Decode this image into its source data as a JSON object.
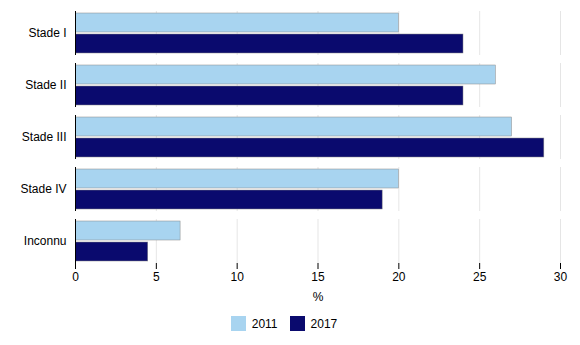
{
  "chart_data": {
    "type": "bar",
    "orientation": "horizontal",
    "categories": [
      "Stade I",
      "Stade II",
      "Stade III",
      "Stade IV",
      "Inconnu"
    ],
    "series": [
      {
        "name": "2011",
        "color": "#a8d4f0",
        "values": [
          20,
          26,
          27,
          20,
          6.5
        ]
      },
      {
        "name": "2017",
        "color": "#0a0a6e",
        "values": [
          24,
          24,
          29,
          19,
          4.5
        ]
      }
    ],
    "xlabel": "%",
    "xlim": [
      0,
      30
    ],
    "xticks": [
      0,
      5,
      10,
      15,
      20,
      25,
      30
    ],
    "grid": true,
    "legend": "bottom"
  }
}
